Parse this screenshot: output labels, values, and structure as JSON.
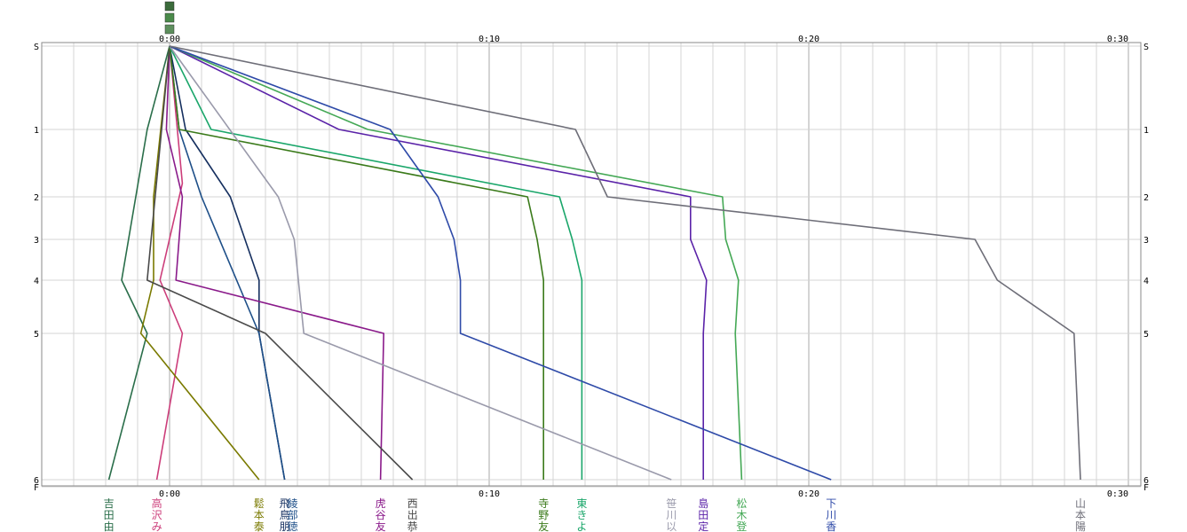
{
  "chart_data": {
    "type": "line",
    "x_ticks": [
      "0:00",
      "0:10",
      "0:20",
      "0:30"
    ],
    "x_range_minutes": [
      0,
      30
    ],
    "y_ticks": [
      "S",
      "1",
      "2",
      "3",
      "4",
      "5",
      "6",
      "F"
    ],
    "grid": true,
    "legend_position": "bottom",
    "header_markers": [
      "#3b6b3b",
      "#4a8a4a",
      "#5d8f5d"
    ],
    "series": [
      {
        "name": "吉田由",
        "color": "#2a6e4a",
        "points": [
          [
            0,
            0
          ],
          [
            -0.7,
            1
          ],
          [
            -1.5,
            4
          ],
          [
            -0.7,
            5
          ],
          [
            -1.9,
            6.1
          ]
        ]
      },
      {
        "name": "高沢み",
        "color": "#cc3d7a",
        "points": [
          [
            0,
            0
          ],
          [
            0.4,
            1.8
          ],
          [
            -0.3,
            4
          ],
          [
            0.4,
            5
          ],
          [
            -0.4,
            6.1
          ]
        ]
      },
      {
        "name": "鬆本泰",
        "color": "#7a7a00",
        "points": [
          [
            0,
            0
          ],
          [
            -0.5,
            2
          ],
          [
            -0.5,
            3
          ],
          [
            -0.5,
            4
          ],
          [
            -0.9,
            5
          ],
          [
            2.8,
            6.1
          ]
        ]
      },
      {
        "name": "飛鳥朋",
        "color": "#152f5f",
        "points": [
          [
            0,
            0
          ],
          [
            0.5,
            1
          ],
          [
            1.9,
            2
          ],
          [
            2.8,
            4
          ],
          [
            2.8,
            5
          ],
          [
            3.6,
            6.1
          ]
        ]
      },
      {
        "name": "綾部徳",
        "color": "#1e4f88",
        "points": [
          [
            0,
            0
          ],
          [
            0.3,
            1
          ],
          [
            1.0,
            2
          ],
          [
            2.8,
            5
          ],
          [
            3.6,
            6.1
          ]
        ]
      },
      {
        "name": "虎谷友",
        "color": "#8a1a8a",
        "points": [
          [
            0,
            0
          ],
          [
            -0.1,
            1
          ],
          [
            0.4,
            2
          ],
          [
            0.2,
            4
          ],
          [
            6.7,
            5
          ],
          [
            6.6,
            6.1
          ]
        ]
      },
      {
        "name": "西出恭",
        "color": "#4a4a4a",
        "points": [
          [
            0,
            0
          ],
          [
            -0.7,
            4
          ],
          [
            3.0,
            5
          ],
          [
            7.6,
            6.1
          ]
        ]
      },
      {
        "name": "寺野友",
        "color": "#3a7a1a",
        "points": [
          [
            0,
            0
          ],
          [
            0.3,
            1
          ],
          [
            11.2,
            2
          ],
          [
            11.5,
            3
          ],
          [
            11.7,
            4
          ],
          [
            11.7,
            6.1
          ]
        ]
      },
      {
        "name": "東きよ",
        "color": "#1aa66a",
        "points": [
          [
            0,
            0
          ],
          [
            1.3,
            1
          ],
          [
            12.2,
            2
          ],
          [
            12.6,
            3
          ],
          [
            12.9,
            4
          ],
          [
            12.9,
            6.1
          ]
        ]
      },
      {
        "name": "笹川以",
        "color": "#9a9aab",
        "points": [
          [
            0,
            0
          ],
          [
            3.4,
            2
          ],
          [
            3.9,
            3
          ],
          [
            4.2,
            5
          ],
          [
            15.7,
            6.1
          ]
        ]
      },
      {
        "name": "島田定",
        "color": "#5a22a8",
        "points": [
          [
            0,
            0
          ],
          [
            5.3,
            1
          ],
          [
            16.3,
            2
          ],
          [
            16.3,
            3
          ],
          [
            16.8,
            4
          ],
          [
            16.7,
            5
          ],
          [
            16.7,
            6.1
          ]
        ]
      },
      {
        "name": "松木登",
        "color": "#44a855",
        "points": [
          [
            0,
            0
          ],
          [
            6.2,
            1
          ],
          [
            17.3,
            2
          ],
          [
            17.4,
            3
          ],
          [
            17.8,
            4
          ],
          [
            17.7,
            5
          ],
          [
            17.9,
            6.1
          ]
        ]
      },
      {
        "name": "下川香",
        "color": "#2e4aa8",
        "points": [
          [
            0,
            0
          ],
          [
            6.9,
            1
          ],
          [
            8.4,
            2
          ],
          [
            8.9,
            3
          ],
          [
            9.1,
            4
          ],
          [
            9.1,
            5
          ],
          [
            20.7,
            6.1
          ]
        ]
      },
      {
        "name": "山本陽",
        "color": "#6e6e78",
        "points": [
          [
            0,
            0
          ],
          [
            12.7,
            1
          ],
          [
            13.7,
            2
          ],
          [
            25.2,
            3
          ],
          [
            25.9,
            4
          ],
          [
            28.3,
            5
          ],
          [
            28.5,
            6.1
          ]
        ]
      }
    ]
  }
}
